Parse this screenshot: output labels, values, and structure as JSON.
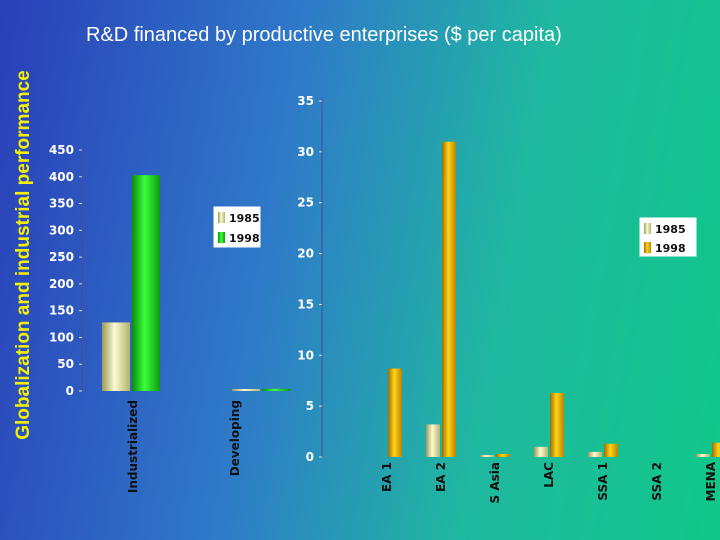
{
  "side_title": "Globalization and industrial performance",
  "slide_title": "R&D financed by productive enterprises ($ per capita)",
  "colors": {
    "series_1985": "#e8e6a0",
    "series_1998_left": "#12c012",
    "series_1998_right": "#d9a300"
  },
  "chart_data": [
    {
      "type": "bar",
      "title": "",
      "categories": [
        "Industrialized",
        "Developing"
      ],
      "series": [
        {
          "name": "1985",
          "values": [
            128,
            2
          ]
        },
        {
          "name": "1998",
          "values": [
            403,
            4
          ]
        }
      ],
      "ylim": [
        0,
        450
      ],
      "yticks": [
        "0",
        "50",
        "100",
        "150",
        "200",
        "250",
        "300",
        "350",
        "400",
        "450"
      ],
      "legend": "top-right",
      "grid": false
    },
    {
      "type": "bar",
      "title": "",
      "categories": [
        "EA 1",
        "EA 2",
        "S Asia",
        "LAC",
        "SSA 1",
        "SSA 2",
        "MENA"
      ],
      "series": [
        {
          "name": "1985",
          "values": [
            0,
            3.2,
            0.2,
            1.0,
            0.5,
            0,
            0.3
          ]
        },
        {
          "name": "1998",
          "values": [
            8.7,
            31.0,
            0.3,
            6.3,
            1.3,
            0,
            1.4
          ]
        }
      ],
      "ylim": [
        0,
        35
      ],
      "yticks": [
        "0",
        "5",
        "10",
        "15",
        "20",
        "25",
        "30",
        "35"
      ],
      "legend": "top-right",
      "grid": false
    }
  ]
}
